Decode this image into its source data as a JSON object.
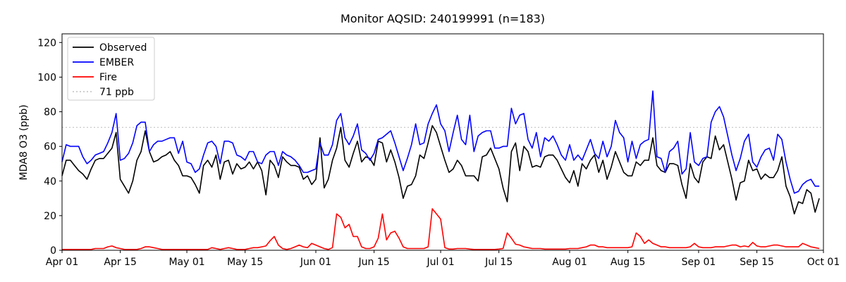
{
  "chart_data": {
    "type": "line",
    "title": "Monitor AQSID: 240199991 (n=183)",
    "xlabel": "",
    "ylabel": "MDA8 O3 (ppb)",
    "ylim": [
      0,
      125
    ],
    "yticks": [
      0,
      20,
      40,
      60,
      80,
      100,
      120
    ],
    "x_start_label": "Apr 01",
    "x_total_days": 183,
    "x_tick_days": [
      0,
      14,
      30,
      44,
      61,
      75,
      91,
      105,
      122,
      136,
      153,
      167,
      183
    ],
    "x_tick_labels": [
      "Apr 01",
      "Apr 15",
      "May 01",
      "May 15",
      "Jun 01",
      "Jun 15",
      "Jul 01",
      "Jul 15",
      "Aug 01",
      "Aug 15",
      "Sep 01",
      "Sep 15",
      "Oct 01"
    ],
    "grid": false,
    "legend_position": "upper left",
    "threshold": {
      "label": "71 ppb",
      "value": 71,
      "color": "#c9c9c9",
      "style": "dotted"
    },
    "series": [
      {
        "name": "Observed",
        "color": "#000000",
        "values": [
          43,
          52,
          52,
          49,
          46,
          44,
          41,
          47,
          52,
          53,
          53,
          56,
          59,
          68,
          41,
          37,
          33,
          40,
          52,
          57,
          69,
          57,
          51,
          52,
          54,
          55,
          57,
          52,
          49,
          43,
          43,
          42,
          38,
          33,
          49,
          52,
          48,
          55,
          41,
          51,
          52,
          44,
          50,
          47,
          48,
          51,
          47,
          51,
          46,
          32,
          52,
          49,
          42,
          54,
          51,
          49,
          49,
          48,
          41,
          43,
          38,
          41,
          65,
          36,
          41,
          52,
          59,
          71,
          52,
          48,
          56,
          63,
          51,
          54,
          53,
          49,
          63,
          62,
          51,
          58,
          51,
          42,
          30,
          37,
          38,
          43,
          55,
          53,
          62,
          72,
          68,
          60,
          52,
          45,
          47,
          52,
          49,
          43,
          43,
          43,
          40,
          54,
          55,
          59,
          53,
          47,
          36,
          28,
          57,
          62,
          46,
          60,
          57,
          48,
          49,
          48,
          54,
          55,
          55,
          52,
          47,
          42,
          39,
          46,
          37,
          50,
          47,
          52,
          55,
          45,
          52,
          41,
          48,
          57,
          51,
          45,
          43,
          43,
          51,
          49,
          52,
          52,
          65,
          49,
          46,
          45,
          50,
          50,
          49,
          38,
          30,
          50,
          42,
          39,
          51,
          54,
          53,
          66,
          58,
          61,
          51,
          41,
          29,
          39,
          40,
          52,
          46,
          47,
          41,
          44,
          42,
          42,
          46,
          54,
          37,
          31,
          21,
          28,
          27,
          35,
          33,
          22,
          30
        ]
      },
      {
        "name": "EMBER",
        "color": "#0000ff",
        "values": [
          51,
          61,
          60,
          60,
          60,
          54,
          50,
          52,
          55,
          56,
          57,
          62,
          68,
          79,
          52,
          53,
          56,
          62,
          72,
          74,
          74,
          57,
          61,
          63,
          63,
          64,
          65,
          65,
          56,
          63,
          51,
          50,
          45,
          47,
          55,
          62,
          63,
          60,
          50,
          63,
          63,
          62,
          55,
          54,
          52,
          57,
          57,
          51,
          50,
          55,
          57,
          57,
          49,
          57,
          55,
          54,
          52,
          49,
          45,
          45,
          46,
          47,
          62,
          55,
          55,
          61,
          75,
          79,
          65,
          61,
          66,
          73,
          58,
          56,
          52,
          56,
          64,
          65,
          67,
          69,
          62,
          54,
          46,
          53,
          61,
          73,
          61,
          62,
          73,
          79,
          84,
          73,
          69,
          57,
          68,
          78,
          64,
          61,
          78,
          57,
          66,
          68,
          69,
          69,
          59,
          59,
          60,
          60,
          82,
          73,
          78,
          79,
          64,
          59,
          68,
          54,
          65,
          63,
          66,
          61,
          55,
          52,
          61,
          52,
          55,
          52,
          58,
          64,
          56,
          53,
          63,
          54,
          60,
          75,
          68,
          65,
          51,
          63,
          53,
          61,
          63,
          64,
          92,
          54,
          53,
          45,
          57,
          59,
          63,
          44,
          47,
          68,
          51,
          49,
          53,
          54,
          74,
          80,
          83,
          77,
          66,
          55,
          46,
          53,
          63,
          67,
          51,
          48,
          54,
          58,
          59,
          52,
          67,
          64,
          51,
          41,
          33,
          34,
          38,
          40,
          41,
          37,
          37
        ]
      },
      {
        "name": "Fire",
        "color": "#ff0000",
        "values": [
          0.5,
          0.5,
          0.5,
          0.5,
          0.5,
          0.5,
          0.5,
          0.5,
          1,
          1,
          1,
          2,
          2.5,
          1.5,
          1,
          0.5,
          0.5,
          0.5,
          0.5,
          1,
          2,
          2,
          1.5,
          1,
          0.5,
          0.5,
          0.5,
          0.5,
          0.5,
          0.5,
          0.5,
          0.5,
          0.5,
          0.5,
          0.5,
          0.5,
          1.5,
          1,
          0.5,
          1,
          1.5,
          1,
          0.5,
          0.5,
          0.5,
          1,
          1.5,
          1.5,
          2,
          2.5,
          5.5,
          8,
          3,
          1,
          0.5,
          1,
          2,
          3,
          2,
          1.5,
          4,
          3,
          2,
          1,
          0.5,
          1.5,
          21,
          19,
          13,
          15,
          8,
          8,
          2,
          1,
          1,
          2,
          7,
          21,
          6,
          10,
          11,
          7,
          2,
          1,
          1,
          1,
          1,
          1,
          2,
          24,
          21,
          18,
          1.5,
          0.7,
          0.7,
          1,
          1,
          1,
          0.7,
          0.5,
          0.5,
          0.5,
          0.5,
          0.5,
          0.5,
          0.7,
          1,
          10,
          7,
          3.5,
          3,
          2,
          1.5,
          1,
          1,
          1,
          0.7,
          0.7,
          0.7,
          0.7,
          0.7,
          0.7,
          1,
          1,
          1,
          1.5,
          2,
          3,
          3,
          2,
          2,
          1.5,
          1.5,
          1.5,
          1.5,
          1.5,
          1.5,
          2,
          10,
          8,
          4,
          6,
          4,
          3,
          2,
          2,
          1.5,
          1.5,
          1.5,
          1.5,
          1.5,
          2,
          4,
          2,
          1.5,
          1.5,
          1.5,
          2,
          2,
          2,
          2.5,
          3,
          3,
          2,
          2.5,
          2,
          4.5,
          2.5,
          2,
          2,
          2.5,
          3,
          3,
          2.5,
          2,
          2,
          2,
          2,
          4,
          3,
          2,
          1.5,
          1
        ]
      }
    ],
    "legend": [
      "Observed",
      "EMBER",
      "Fire",
      "71 ppb"
    ]
  }
}
